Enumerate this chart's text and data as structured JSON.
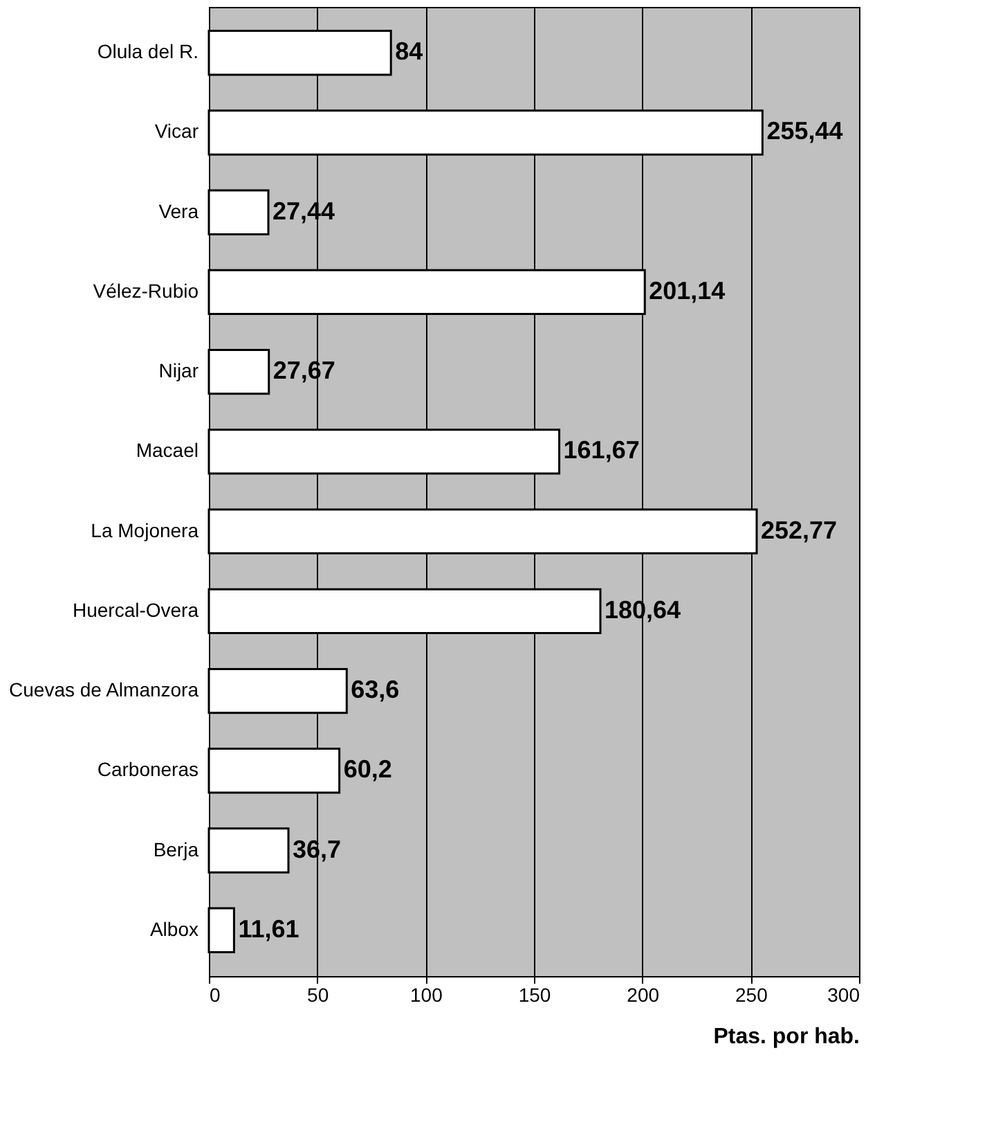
{
  "chart_data": {
    "type": "bar",
    "orientation": "horizontal",
    "xlabel": "Ptas. por hab.",
    "categories": [
      "Olula del R.",
      "Vicar",
      "Vera",
      "Vélez-Rubio",
      "Nijar",
      "Macael",
      "La Mojonera",
      "Huercal-Overa",
      "Cuevas de Almanzora",
      "Carboneras",
      "Berja",
      "Albox"
    ],
    "values": [
      84,
      255.44,
      27.44,
      201.14,
      27.67,
      161.67,
      252.77,
      180.64,
      63.6,
      60.2,
      36.7,
      11.61
    ],
    "value_labels": [
      "84",
      "255,44",
      "27,44",
      "201,14",
      "27,67",
      "161,67",
      "252,77",
      "180,64",
      "63,6",
      "60,2",
      "36,7",
      "11,61"
    ],
    "color": "#ffffff",
    "xlim": [
      0,
      300
    ],
    "xticks": [
      0,
      50,
      100,
      150,
      200,
      250,
      300
    ],
    "grid": "x"
  }
}
